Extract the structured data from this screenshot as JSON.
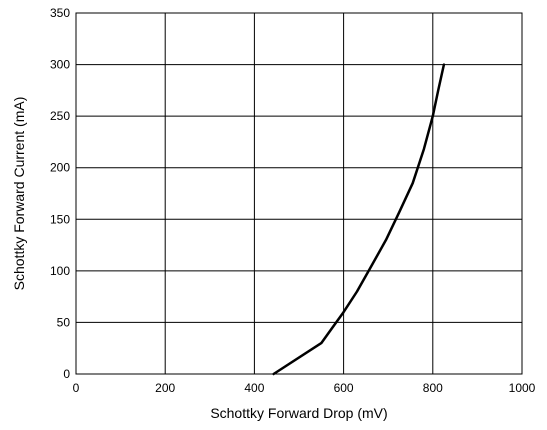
{
  "chart_data": {
    "type": "line",
    "xlabel": "Schottky Forward Drop (mV)",
    "ylabel": "Schottky Forward Current (mA)",
    "xlim": [
      0,
      1000
    ],
    "ylim": [
      0,
      350
    ],
    "xticks": [
      0,
      200,
      400,
      600,
      800,
      1000
    ],
    "yticks": [
      0,
      50,
      100,
      150,
      200,
      250,
      300,
      350
    ],
    "grid": true,
    "series": [
      {
        "x": [
          443,
          550,
          575,
          600,
          630,
          660,
          695,
          725,
          755,
          780,
          800,
          812,
          825
        ],
        "y": [
          0,
          30,
          45,
          60,
          80,
          103,
          130,
          157,
          185,
          218,
          250,
          275,
          300
        ]
      }
    ],
    "colors": {
      "line": "#000000",
      "grid": "#000000"
    }
  }
}
